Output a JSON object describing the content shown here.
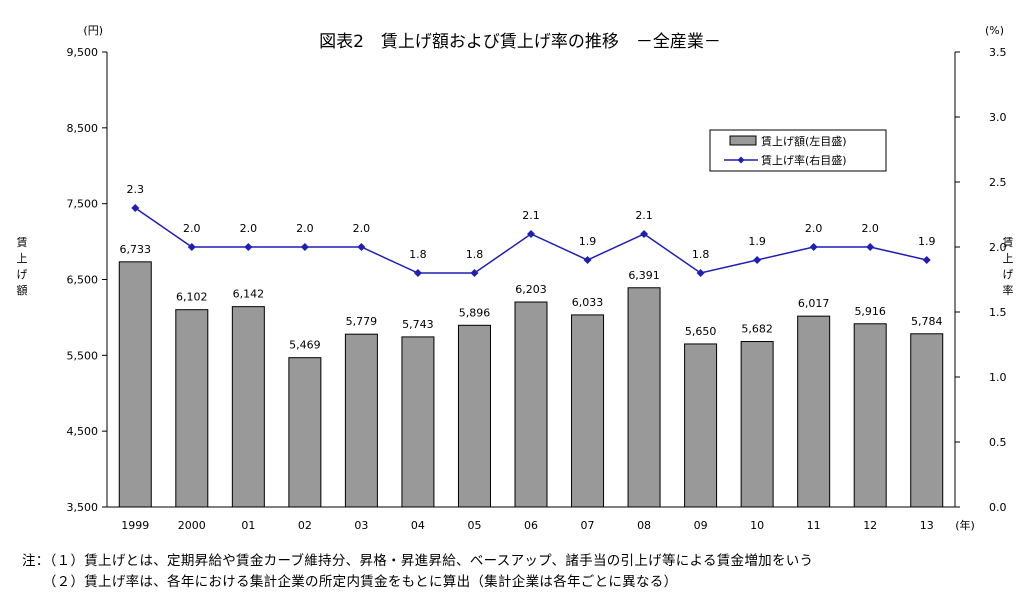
{
  "chart_data": {
    "type": "bar",
    "title": "図表2　賃上げ額および賃上げ率の推移　－全産業－",
    "categories": [
      "1999",
      "2000",
      "01",
      "02",
      "03",
      "04",
      "05",
      "06",
      "07",
      "08",
      "09",
      "10",
      "11",
      "12",
      "13"
    ],
    "x_unit": "(年)",
    "y_left": {
      "label": "賃上げ額",
      "unit": "(円)",
      "ylim": [
        3500,
        9500
      ],
      "ticks": [
        "3,500",
        "4,500",
        "5,500",
        "6,500",
        "7,500",
        "8,500",
        "9,500"
      ]
    },
    "y_right": {
      "label": "賃上げ率",
      "unit": "(%)",
      "ylim": [
        0,
        3.5
      ],
      "ticks": [
        "0.0",
        "0.5",
        "1.0",
        "1.5",
        "2.0",
        "2.5",
        "3.0",
        "3.5"
      ]
    },
    "series": [
      {
        "name": "賃上げ額(左目盛)",
        "kind": "bar",
        "axis": "left",
        "color": "#999999",
        "values": [
          6733,
          6102,
          6142,
          5469,
          5779,
          5743,
          5896,
          6203,
          6033,
          6391,
          5650,
          5682,
          6017,
          5916,
          5784
        ],
        "labels": [
          "6,733",
          "6,102",
          "6,142",
          "5,469",
          "5,779",
          "5,743",
          "5,896",
          "6,203",
          "6,033",
          "6,391",
          "5,650",
          "5,682",
          "6,017",
          "5,916",
          "5,784"
        ]
      },
      {
        "name": "賃上げ率(右目盛)",
        "kind": "line",
        "axis": "right",
        "color": "#1f1fb4",
        "values": [
          2.3,
          2.0,
          2.0,
          2.0,
          2.0,
          1.8,
          1.8,
          2.1,
          1.9,
          2.1,
          1.8,
          1.9,
          2.0,
          2.0,
          1.9
        ],
        "labels": [
          "2.3",
          "2.0",
          "2.0",
          "2.0",
          "2.0",
          "1.8",
          "1.8",
          "2.1",
          "1.9",
          "2.1",
          "1.8",
          "1.9",
          "2.0",
          "2.0",
          "1.9"
        ]
      }
    ],
    "legend_position": "top-right",
    "grid": false
  },
  "notes": [
    "注：（１）賃上げとは、定期昇給や賃金カーブ維持分、昇格・昇進昇給、ベースアップ、諸手当の引上げ等による賃金増加をいう",
    "　　（２）賃上げ率は、各年における集計企業の所定内賃金をもとに算出（集計企業は各年ごとに異なる）"
  ]
}
